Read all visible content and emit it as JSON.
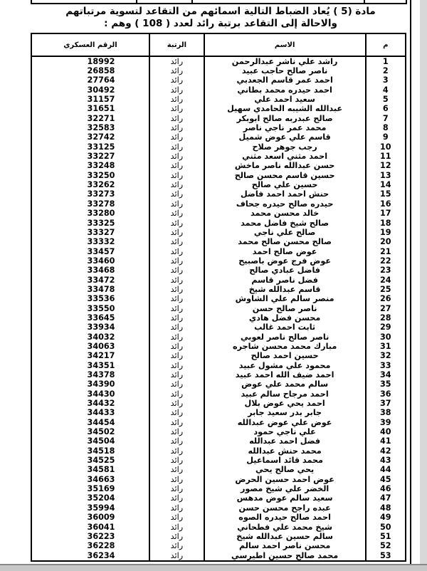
{
  "heading": {
    "line1": "مادة (5 ) يُعاد الضباط التالية اسمائهم من التقاعد لتسوية مرتباتهم",
    "line2": "والاحالة إلى التقاعد برتبة رائد لعدد ( 108 ) وهم :"
  },
  "table": {
    "headers": {
      "m": "م",
      "name": "الاسم",
      "rank": "الرتبة",
      "number": "الرقم العسكري"
    },
    "rows": [
      {
        "m": "1",
        "name": "راشد علي ناشر عبدالرحمن",
        "rank": "رائد",
        "number": "18992"
      },
      {
        "m": "2",
        "name": "ناصر صالح حاجب عبيد",
        "rank": "رائد",
        "number": "26858"
      },
      {
        "m": "3",
        "name": "احمد عمر قاسم  الجعدبي",
        "rank": "رائد",
        "number": "27764"
      },
      {
        "m": "4",
        "name": "احمد حيدره محمد بطاني",
        "rank": "رائد",
        "number": "30492"
      },
      {
        "m": "5",
        "name": "سعيد احمد علي",
        "rank": "رائد",
        "number": "31157"
      },
      {
        "m": "6",
        "name": "عبدالله الشيبه الحامدي سهيل",
        "rank": "رائد",
        "number": "31651"
      },
      {
        "m": "7",
        "name": "صالح عبدربه صالح ابوبكر",
        "rank": "رائد",
        "number": "32271"
      },
      {
        "m": "8",
        "name": "محمد عمر ناجي ناصر",
        "rank": "رائد",
        "number": "32583"
      },
      {
        "m": "9",
        "name": "قاسم علي عوض شميل",
        "rank": "رائد",
        "number": "32742"
      },
      {
        "m": "10",
        "name": "رجب جوهر صلاح",
        "rank": "رائد",
        "number": "33125"
      },
      {
        "m": "11",
        "name": "احمد مثني اسعد مثني",
        "rank": "رائد",
        "number": "33227"
      },
      {
        "m": "12",
        "name": "حسن عبدالله ناصر ماخش",
        "rank": "رائد",
        "number": "33248"
      },
      {
        "m": "13",
        "name": "حسين قاسم محسن صالح",
        "rank": "رائد",
        "number": "33250"
      },
      {
        "m": "14",
        "name": "حسين علي صالح",
        "rank": "رائد",
        "number": "33262"
      },
      {
        "m": "15",
        "name": "حنش احمد احمد فاضل",
        "rank": "رائد",
        "number": "33273"
      },
      {
        "m": "16",
        "name": "حيدره صالح حيدره جحاف",
        "rank": "رائد",
        "number": "33278"
      },
      {
        "m": "17",
        "name": "خالد محسن محمد",
        "rank": "رائد",
        "number": "33280"
      },
      {
        "m": "18",
        "name": "صالح شيخ فاضل محمد",
        "rank": "رائد",
        "number": "33325"
      },
      {
        "m": "19",
        "name": "صالح علي ناجي",
        "rank": "رائد",
        "number": "33327"
      },
      {
        "m": "20",
        "name": "صالح محسن صالح محمد",
        "rank": "رائد",
        "number": "33332"
      },
      {
        "m": "21",
        "name": "عوض صالح احمد",
        "rank": "رائد",
        "number": "33457"
      },
      {
        "m": "22",
        "name": "عوض فرج عوض باصبيح",
        "rank": "رائد",
        "number": "33460"
      },
      {
        "m": "23",
        "name": "فاضل عبادي صالح",
        "rank": "رائد",
        "number": "33468"
      },
      {
        "m": "24",
        "name": "فضل ناصر قاسم",
        "rank": "رائد",
        "number": "33472"
      },
      {
        "m": "25",
        "name": "قاسم عبدالله شيخ",
        "rank": "رائد",
        "number": "33478"
      },
      {
        "m": "26",
        "name": "منصر سالم علي الشاوش",
        "rank": "رائد",
        "number": "33536"
      },
      {
        "m": "27",
        "name": "ناصر صالح حسن",
        "rank": "رائد",
        "number": "33550"
      },
      {
        "m": "28",
        "name": "محسن فضل هادي",
        "rank": "رائد",
        "number": "33645"
      },
      {
        "m": "29",
        "name": "ثابت احمد غالب",
        "rank": "رائد",
        "number": "33934"
      },
      {
        "m": "30",
        "name": "ناصر صالح ناصر لعوبي",
        "rank": "رائد",
        "number": "34032"
      },
      {
        "m": "31",
        "name": "مبارك محمد محسن شاجره",
        "rank": "رائد",
        "number": "34063"
      },
      {
        "m": "32",
        "name": "حسين احمد صالح",
        "rank": "رائد",
        "number": "34217"
      },
      {
        "m": "33",
        "name": "محمود علي مشول عبيد",
        "rank": "رائد",
        "number": "34351"
      },
      {
        "m": "34",
        "name": "احمد ضيف الله احمد عبيد",
        "rank": "رائد",
        "number": "34378"
      },
      {
        "m": "35",
        "name": "سالم محمد علي عوض",
        "rank": "رائد",
        "number": "34390"
      },
      {
        "m": "36",
        "name": "احمد مرجاح سالم عبيد",
        "rank": "رائد",
        "number": "34430"
      },
      {
        "m": "37",
        "name": "احمد يحي عوض بلال",
        "rank": "رائد",
        "number": "34432"
      },
      {
        "m": "38",
        "name": "جابر بدر سعيد جابر",
        "rank": "رائد",
        "number": "34433"
      },
      {
        "m": "39",
        "name": "عوض علي عوض عبدالله",
        "rank": "رائد",
        "number": "34454"
      },
      {
        "m": "40",
        "name": "علي ناجي حمود",
        "rank": "رائد",
        "number": "34502"
      },
      {
        "m": "41",
        "name": "فضل احمد عبدالله",
        "rank": "رائد",
        "number": "34504"
      },
      {
        "m": "42",
        "name": "محمد حنش عبدالله",
        "rank": "رائد",
        "number": "34518"
      },
      {
        "m": "43",
        "name": "محمد قائد اسماعيل",
        "rank": "رائد",
        "number": "34525"
      },
      {
        "m": "44",
        "name": "يحي صالح يحي",
        "rank": "رائد",
        "number": "34581"
      },
      {
        "m": "45",
        "name": "عوض احمد حسين الحرض",
        "rank": "رائد",
        "number": "34663"
      },
      {
        "m": "46",
        "name": "الخضر علي شيخ مصور",
        "rank": "رائد",
        "number": "35169"
      },
      {
        "m": "47",
        "name": "سعيد سالم عوض مدهس",
        "rank": "رائد",
        "number": "35204"
      },
      {
        "m": "48",
        "name": "عبده راجح محسن حسن",
        "rank": "رائد",
        "number": "35994"
      },
      {
        "m": "49",
        "name": "احمد صالح حيدره الصوه",
        "rank": "رائد",
        "number": "36009"
      },
      {
        "m": "50",
        "name": "شيخ محمد علي فطحاني",
        "rank": "رائد",
        "number": "36041"
      },
      {
        "m": "51",
        "name": "سالم حسين عبدالله شيخ",
        "rank": "رائد",
        "number": "36223"
      },
      {
        "m": "52",
        "name": "محسن ناصر احمد سالم",
        "rank": "رائد",
        "number": "36228"
      },
      {
        "m": "53",
        "name": "محمد صالح حسين اطيرسي",
        "rank": "رائد",
        "number": "36234"
      }
    ]
  }
}
